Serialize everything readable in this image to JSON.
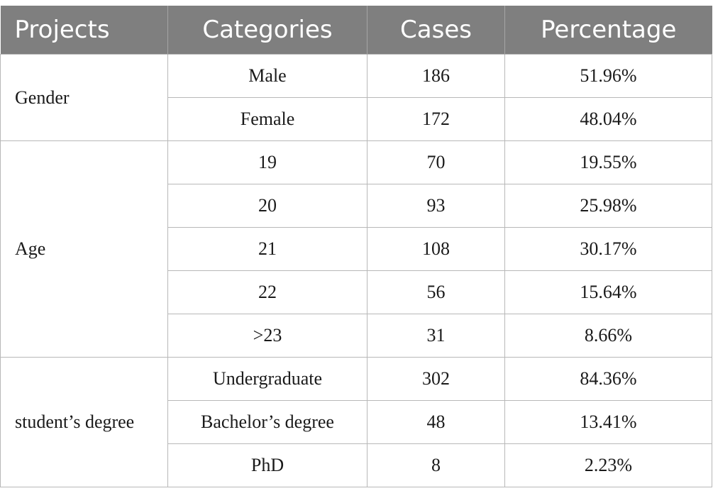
{
  "headers": [
    "Projects",
    "Categories",
    "Cases",
    "Percentage"
  ],
  "groups": [
    {
      "project": "Gender",
      "rows": [
        {
          "category": "Male",
          "cases": "186",
          "percentage": "51.96%"
        },
        {
          "category": "Female",
          "cases": "172",
          "percentage": "48.04%"
        }
      ]
    },
    {
      "project": "Age",
      "rows": [
        {
          "category": "19",
          "cases": "70",
          "percentage": "19.55%"
        },
        {
          "category": "20",
          "cases": "93",
          "percentage": "25.98%"
        },
        {
          "category": "21",
          "cases": "108",
          "percentage": "30.17%"
        },
        {
          "category": "22",
          "cases": "56",
          "percentage": "15.64%"
        },
        {
          "category": ">23",
          "cases": "31",
          "percentage": "8.66%"
        }
      ]
    },
    {
      "project": "student’s degree",
      "rows": [
        {
          "category": "Undergraduate",
          "cases": "302",
          "percentage": "84.36%"
        },
        {
          "category": "Bachelor’s degree",
          "cases": "48",
          "percentage": "13.41%"
        },
        {
          "category": "PhD",
          "cases": "8",
          "percentage": "2.23%"
        }
      ]
    }
  ]
}
